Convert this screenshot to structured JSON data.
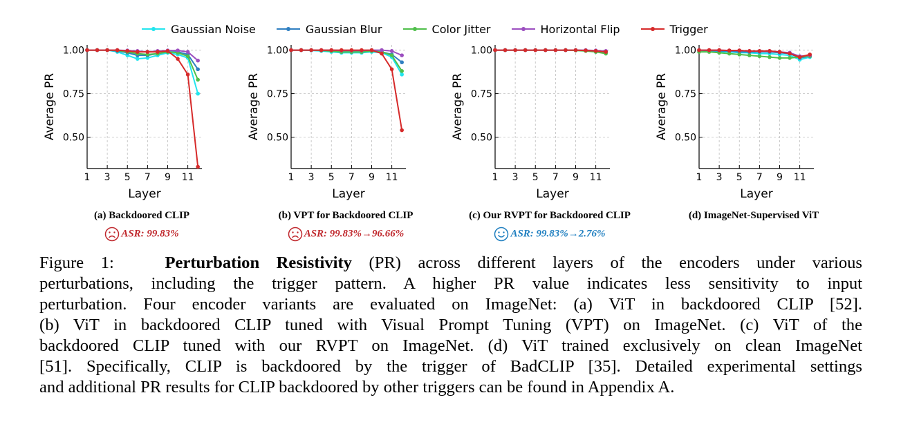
{
  "legend": [
    {
      "name": "Gaussian Noise",
      "color": "#22e5ee"
    },
    {
      "name": "Gaussian Blur",
      "color": "#2f7fc1"
    },
    {
      "name": "Color Jitter",
      "color": "#4fbf4a"
    },
    {
      "name": "Horizontal Flip",
      "color": "#9c4fc0"
    },
    {
      "name": "Trigger",
      "color": "#d62a2a"
    }
  ],
  "chart_data": [
    {
      "type": "line",
      "subcaption": "(a) Backdoored CLIP",
      "asr": "ASR: 99.83%",
      "asr_color": "#c0282d",
      "face": "sad",
      "xlabel": "Layer",
      "ylabel": "Average PR",
      "x": [
        1,
        2,
        3,
        4,
        5,
        6,
        7,
        8,
        9,
        10,
        11,
        12
      ],
      "xticks": [
        1,
        3,
        5,
        7,
        9,
        11
      ],
      "yticks": [
        "0.50",
        "0.75",
        "1.00"
      ],
      "ylim": [
        0.32,
        1.03
      ],
      "series": [
        {
          "name": "Gaussian Noise",
          "values": [
            1.0,
            1.0,
            1.0,
            0.99,
            0.97,
            0.95,
            0.955,
            0.97,
            0.985,
            0.975,
            0.955,
            0.75
          ]
        },
        {
          "name": "Gaussian Blur",
          "values": [
            1.0,
            1.0,
            1.0,
            0.995,
            0.985,
            0.97,
            0.97,
            0.98,
            0.99,
            0.99,
            0.975,
            0.89
          ]
        },
        {
          "name": "Color Jitter",
          "values": [
            1.0,
            1.0,
            1.0,
            0.998,
            0.99,
            0.98,
            0.975,
            0.98,
            0.99,
            0.985,
            0.965,
            0.83
          ]
        },
        {
          "name": "Horizontal Flip",
          "values": [
            1.0,
            1.0,
            1.0,
            1.0,
            0.998,
            0.995,
            0.99,
            0.995,
            0.998,
            0.998,
            0.99,
            0.94
          ]
        },
        {
          "name": "Trigger",
          "values": [
            1.0,
            1.0,
            1.0,
            1.0,
            0.995,
            0.99,
            0.99,
            0.99,
            0.995,
            0.95,
            0.86,
            0.33
          ]
        }
      ]
    },
    {
      "type": "line",
      "subcaption": "(b) VPT for Backdoored CLIP",
      "asr": "ASR: 99.83%→96.66%",
      "asr_color": "#c0282d",
      "face": "sad",
      "xlabel": "Layer",
      "ylabel": "Average PR",
      "x": [
        1,
        2,
        3,
        4,
        5,
        6,
        7,
        8,
        9,
        10,
        11,
        12
      ],
      "xticks": [
        1,
        3,
        5,
        7,
        9,
        11
      ],
      "yticks": [
        "0.50",
        "0.75",
        "1.00"
      ],
      "ylim": [
        0.32,
        1.03
      ],
      "series": [
        {
          "name": "Gaussian Noise",
          "values": [
            1.0,
            1.0,
            0.998,
            0.995,
            0.99,
            0.985,
            0.985,
            0.985,
            0.99,
            0.985,
            0.96,
            0.86
          ]
        },
        {
          "name": "Gaussian Blur",
          "values": [
            1.0,
            1.0,
            1.0,
            0.998,
            0.995,
            0.99,
            0.99,
            0.99,
            0.995,
            0.99,
            0.975,
            0.93
          ]
        },
        {
          "name": "Color Jitter",
          "values": [
            1.0,
            1.0,
            1.0,
            0.998,
            0.995,
            0.99,
            0.99,
            0.99,
            0.995,
            0.99,
            0.97,
            0.88
          ]
        },
        {
          "name": "Horizontal Flip",
          "values": [
            1.0,
            1.0,
            1.0,
            1.0,
            1.0,
            0.998,
            0.998,
            0.998,
            1.0,
            1.0,
            0.995,
            0.97
          ]
        },
        {
          "name": "Trigger",
          "values": [
            1.0,
            1.0,
            1.0,
            1.0,
            1.0,
            1.0,
            1.0,
            1.0,
            1.0,
            0.98,
            0.89,
            0.54
          ]
        }
      ]
    },
    {
      "type": "line",
      "subcaption": "(c) Our RVPT for Backdoored CLIP",
      "asr": "ASR: 99.83%→2.76%",
      "asr_color": "#1f7fc0",
      "face": "happy",
      "xlabel": "Layer",
      "ylabel": "Average PR",
      "x": [
        1,
        2,
        3,
        4,
        5,
        6,
        7,
        8,
        9,
        10,
        11,
        12
      ],
      "xticks": [
        1,
        3,
        5,
        7,
        9,
        11
      ],
      "yticks": [
        "0.50",
        "0.75",
        "1.00"
      ],
      "ylim": [
        0.32,
        1.03
      ],
      "series": [
        {
          "name": "Gaussian Noise",
          "values": [
            1.0,
            1.0,
            1.0,
            1.0,
            1.0,
            1.0,
            1.0,
            1.0,
            1.0,
            0.998,
            0.99,
            0.985
          ]
        },
        {
          "name": "Gaussian Blur",
          "values": [
            1.0,
            1.0,
            1.0,
            1.0,
            1.0,
            1.0,
            1.0,
            1.0,
            1.0,
            0.998,
            0.995,
            0.99
          ]
        },
        {
          "name": "Color Jitter",
          "values": [
            1.0,
            1.0,
            1.0,
            1.0,
            1.0,
            1.0,
            1.0,
            1.0,
            0.998,
            0.995,
            0.99,
            0.98
          ]
        },
        {
          "name": "Horizontal Flip",
          "values": [
            1.0,
            1.0,
            1.0,
            1.0,
            1.0,
            1.0,
            1.0,
            1.0,
            1.0,
            1.0,
            0.998,
            0.995
          ]
        },
        {
          "name": "Trigger",
          "values": [
            1.0,
            1.0,
            1.0,
            1.0,
            1.0,
            1.0,
            1.0,
            1.0,
            1.0,
            0.998,
            0.995,
            0.99
          ]
        }
      ]
    },
    {
      "type": "line",
      "subcaption": "(d) ImageNet-Supervised ViT",
      "asr": "",
      "asr_color": "#000000",
      "face": "none",
      "xlabel": "Layer",
      "ylabel": "Average PR",
      "x": [
        1,
        2,
        3,
        4,
        5,
        6,
        7,
        8,
        9,
        10,
        11,
        12
      ],
      "xticks": [
        1,
        3,
        5,
        7,
        9,
        11
      ],
      "yticks": [
        "0.50",
        "0.75",
        "1.00"
      ],
      "ylim": [
        0.32,
        1.03
      ],
      "series": [
        {
          "name": "Gaussian Noise",
          "values": [
            0.998,
            0.995,
            0.99,
            0.99,
            0.985,
            0.985,
            0.98,
            0.98,
            0.975,
            0.97,
            0.945,
            0.96
          ]
        },
        {
          "name": "Gaussian Blur",
          "values": [
            1.0,
            0.998,
            0.995,
            0.995,
            0.99,
            0.99,
            0.99,
            0.99,
            0.985,
            0.98,
            0.955,
            0.965
          ]
        },
        {
          "name": "Color Jitter",
          "values": [
            0.99,
            0.99,
            0.985,
            0.98,
            0.975,
            0.97,
            0.965,
            0.96,
            0.955,
            0.955,
            0.96,
            0.965
          ]
        },
        {
          "name": "Horizontal Flip",
          "values": [
            1.0,
            1.0,
            1.0,
            0.998,
            0.998,
            0.995,
            0.995,
            0.995,
            0.99,
            0.985,
            0.965,
            0.97
          ]
        },
        {
          "name": "Trigger",
          "values": [
            1.0,
            1.0,
            1.0,
            0.998,
            0.998,
            0.995,
            0.995,
            0.995,
            0.99,
            0.98,
            0.96,
            0.975
          ]
        }
      ]
    }
  ],
  "caption": {
    "prefix": "Figure 1:",
    "bold": "Perturbation Resistivity",
    "line1_rest": " (PR) across different layers of the encoders under various",
    "line2": "perturbations, including the trigger pattern. A higher PR value indicates less sensitivity to input",
    "line3": "perturbation. Four encoder variants are evaluated on ImageNet: (a) ViT in backdoored CLIP [52].",
    "line4": "(b) ViT in backdoored CLIP tuned with Visual Prompt Tuning (VPT) on ImageNet. (c) ViT of the",
    "line5": "backdoored CLIP tuned with our RVPT on ImageNet. (d) ViT trained exclusively on clean ImageNet",
    "line6": "[51]. Specifically, CLIP is backdoored by the trigger of BadCLIP [35]. Detailed experimental settings",
    "line7": "and additional PR results for CLIP backdoored by other triggers can be found in Appendix A."
  }
}
